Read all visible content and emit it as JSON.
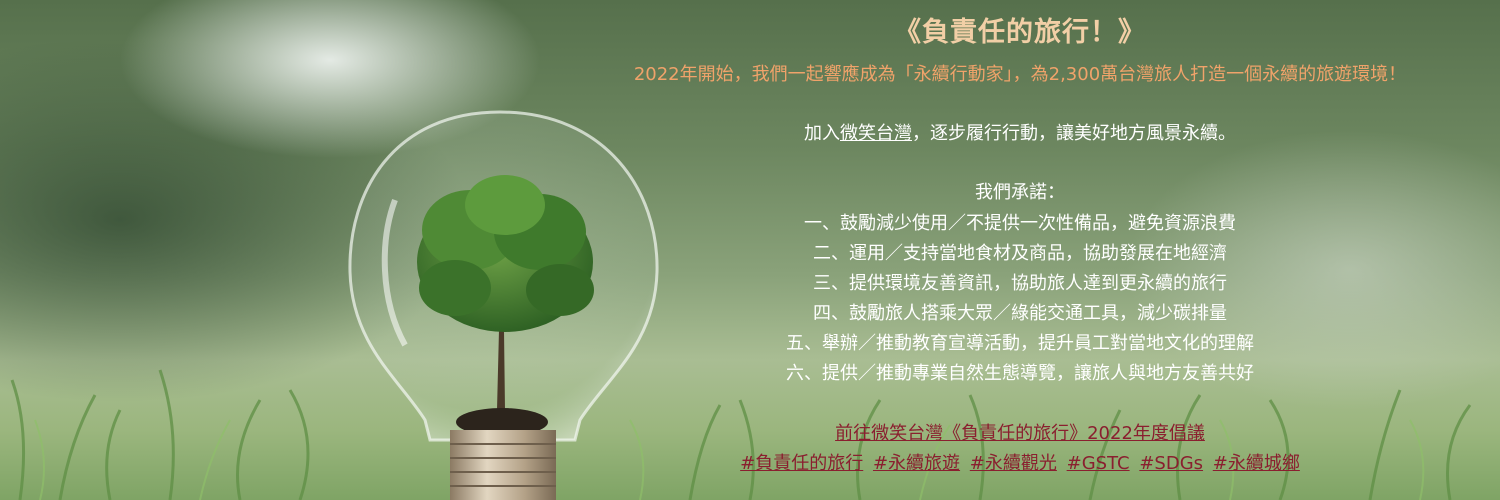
{
  "title": "《負責任的旅行！》",
  "intro": "2022年開始，我們一起響應成為「永續行動家」，為2,300萬台灣旅人打造一個永續的旅遊環境！",
  "join": {
    "prefix": "加入",
    "link": "微笑台灣",
    "suffix": "，逐步履行行動，讓美好地方風景永續。"
  },
  "promise_heading": "我們承諾：",
  "promises": [
    "一、鼓勵減少使用／不提供一次性備品，避免資源浪費",
    "二、運用／支持當地食材及商品，協助發展在地經濟",
    "三、提供環境友善資訊，協助旅人達到更永續的旅行",
    "四、鼓勵旅人搭乘大眾／綠能交通工具，減少碳排量",
    "五、舉辦／推動教育宣導活動，提升員工對當地文化的理解",
    "六、提供／推動專業自然生態導覽，讓旅人與地方友善共好"
  ],
  "initiative_link": "前往微笑台灣《負責任的旅行》2022年度倡議",
  "hashtags": [
    "#負責任的旅行",
    "#永續旅遊",
    "#永續觀光",
    "#GSTC",
    "#SDGs",
    "#永續城鄉"
  ],
  "colors": {
    "title": "#f2cfa6",
    "intro": "#f0a36a",
    "body_text": "#ffffff",
    "link": "#8a1f2f"
  },
  "image": {
    "subject": "lightbulb-with-tree-icon",
    "background": "grass-field"
  }
}
